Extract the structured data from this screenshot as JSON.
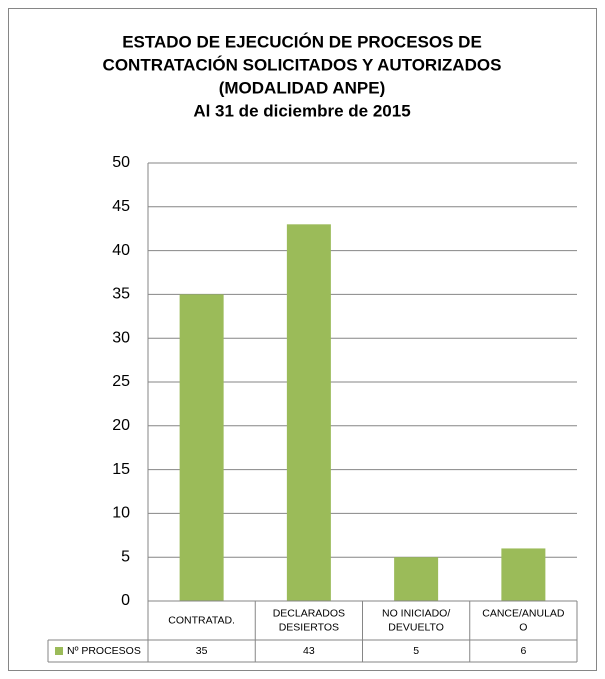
{
  "chart_data": {
    "type": "bar",
    "title": [
      "ESTADO DE EJECUCIÓN DE PROCESOS DE",
      "CONTRATACIÓN SOLICITADOS Y AUTORIZADOS",
      "(MODALIDAD ANPE)",
      "Al 31 de diciembre de 2015"
    ],
    "categories": [
      [
        "CONTRATAD."
      ],
      [
        "DECLARADOS",
        "DESIERTOS"
      ],
      [
        "NO INICIADO/",
        "DEVUELTO"
      ],
      [
        "CANCE/ANULAD",
        "O"
      ]
    ],
    "series": [
      {
        "name": "Nº PROCESOS",
        "color": "#9bbb59",
        "values": [
          35,
          43,
          5,
          6
        ]
      }
    ],
    "ylim": [
      0,
      50
    ],
    "yticks": [
      0,
      5,
      10,
      15,
      20,
      25,
      30,
      35,
      40,
      45,
      50
    ],
    "grid": true,
    "data_table": true
  }
}
